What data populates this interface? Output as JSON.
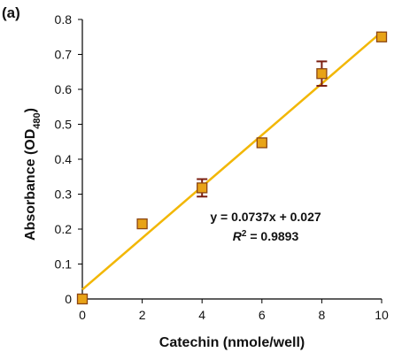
{
  "chart_data": {
    "type": "scatter",
    "panel_label": "(a)",
    "xlabel": "Catechin (nmole/well)",
    "ylabel": {
      "main": "Absorbance (OD",
      "sub": "480",
      "end": ")"
    },
    "xlim": [
      0,
      10
    ],
    "ylim": [
      0,
      0.8
    ],
    "x_ticks": [
      "0",
      "2",
      "4",
      "6",
      "8",
      "10"
    ],
    "y_ticks": [
      "0",
      "0.1",
      "0.2",
      "0.3",
      "0.4",
      "0.5",
      "0.6",
      "0.7",
      "0.8"
    ],
    "points": [
      {
        "x": 0,
        "y": 0.0,
        "err": 0.0
      },
      {
        "x": 2,
        "y": 0.215,
        "err": 0.0
      },
      {
        "x": 4,
        "y": 0.318,
        "err": 0.025
      },
      {
        "x": 6,
        "y": 0.447,
        "err": 0.0
      },
      {
        "x": 8,
        "y": 0.645,
        "err": 0.035
      },
      {
        "x": 10,
        "y": 0.75,
        "err": 0.0
      }
    ],
    "trendline": {
      "slope": 0.0737,
      "intercept": 0.027,
      "x_range": [
        0,
        10
      ]
    },
    "equation": "y = 0.0737x + 0.027",
    "r_squared": {
      "symbol": "R",
      "sup": "2",
      "value": " = 0.9893"
    },
    "colors": {
      "marker_fill": "#E8A317",
      "marker_stroke": "#8B4513",
      "trendline": "#F2B705",
      "error_bar": "#7A1E10",
      "axis": "#000000"
    },
    "grid": false,
    "legend": "none"
  }
}
